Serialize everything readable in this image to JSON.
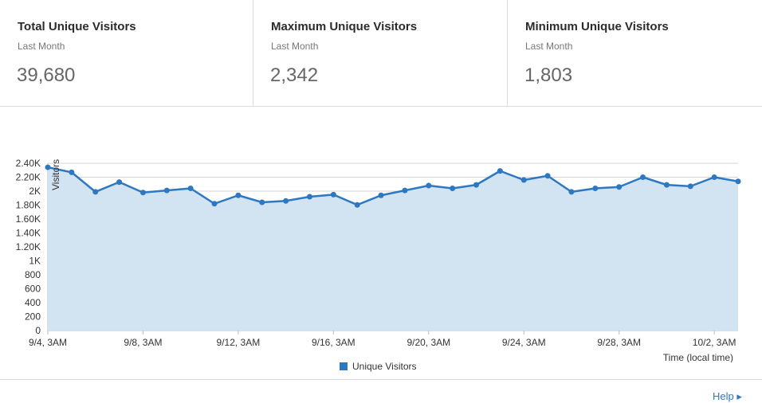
{
  "stats": [
    {
      "title": "Total Unique Visitors",
      "subtitle": "Last Month",
      "value": "39,680"
    },
    {
      "title": "Maximum Unique Visitors",
      "subtitle": "Last Month",
      "value": "2,342"
    },
    {
      "title": "Minimum Unique Visitors",
      "subtitle": "Last Month",
      "value": "1,803"
    }
  ],
  "chart_data": {
    "type": "area",
    "ylabel": "Visitors",
    "xlabel": "Time (local time)",
    "ylim": [
      0,
      2400
    ],
    "y_ticks": [
      {
        "value": 0,
        "label": "0"
      },
      {
        "value": 200,
        "label": "200"
      },
      {
        "value": 400,
        "label": "400"
      },
      {
        "value": 600,
        "label": "600"
      },
      {
        "value": 800,
        "label": "800"
      },
      {
        "value": 1000,
        "label": "1K"
      },
      {
        "value": 1200,
        "label": "1.20K"
      },
      {
        "value": 1400,
        "label": "1.40K"
      },
      {
        "value": 1600,
        "label": "1.60K"
      },
      {
        "value": 1800,
        "label": "1.80K"
      },
      {
        "value": 2000,
        "label": "2K"
      },
      {
        "value": 2200,
        "label": "2.20K"
      },
      {
        "value": 2400,
        "label": "2.40K"
      }
    ],
    "x_ticks": [
      {
        "index": 0,
        "label": "9/4, 3AM"
      },
      {
        "index": 4,
        "label": "9/8, 3AM"
      },
      {
        "index": 8,
        "label": "9/12, 3AM"
      },
      {
        "index": 12,
        "label": "9/16, 3AM"
      },
      {
        "index": 16,
        "label": "9/20, 3AM"
      },
      {
        "index": 20,
        "label": "9/24, 3AM"
      },
      {
        "index": 24,
        "label": "9/28, 3AM"
      },
      {
        "index": 28,
        "label": "10/2, 3AM"
      }
    ],
    "grid": true,
    "legend": "bottom-center",
    "series": [
      {
        "name": "Unique Visitors",
        "color": "#2e78c2",
        "fill": "#d2e3f1",
        "x": [
          "9/4",
          "9/5",
          "9/6",
          "9/7",
          "9/8",
          "9/9",
          "9/10",
          "9/11",
          "9/12",
          "9/13",
          "9/14",
          "9/15",
          "9/16",
          "9/17",
          "9/18",
          "9/19",
          "9/20",
          "9/21",
          "9/22",
          "9/23",
          "9/24",
          "9/25",
          "9/26",
          "9/27",
          "9/28",
          "9/29",
          "9/30",
          "10/1",
          "10/2",
          "10/3"
        ],
        "values": [
          2342,
          2270,
          1990,
          2130,
          1980,
          2010,
          2040,
          1820,
          1940,
          1840,
          1860,
          1920,
          1950,
          1803,
          1940,
          2010,
          2080,
          2040,
          2090,
          2290,
          2160,
          2220,
          1990,
          2040,
          2060,
          2200,
          2090,
          2070,
          2200,
          2140
        ]
      }
    ]
  },
  "help": {
    "label": "Help ▸"
  }
}
